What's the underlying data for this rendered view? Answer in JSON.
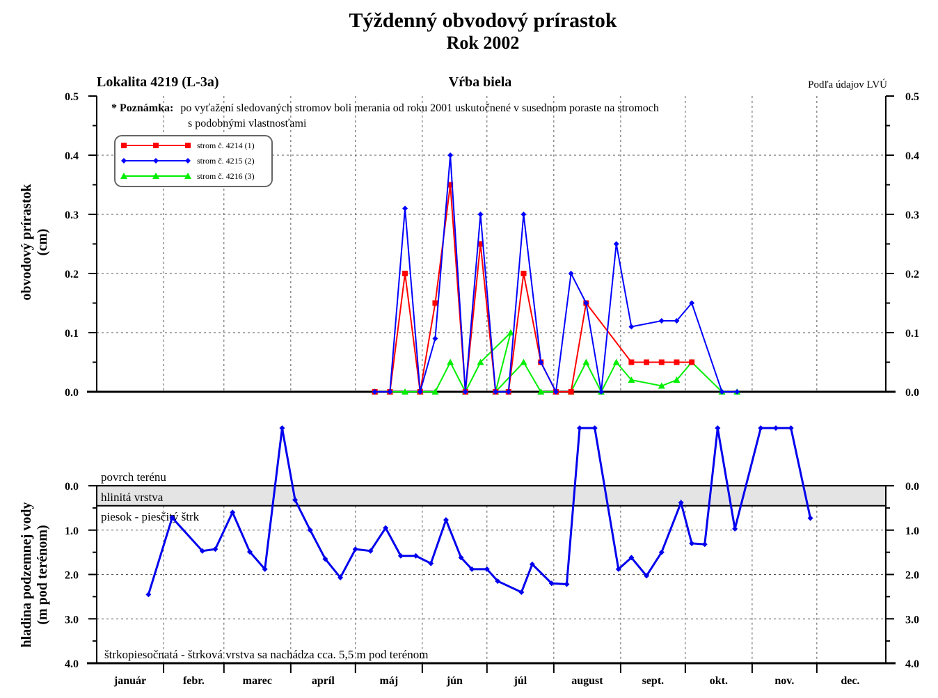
{
  "header": {
    "title": "Týždenný obvodový prírastok",
    "subtitle": "Rok 2002",
    "location": "Lokalita 4219 (L-3a)",
    "species": "Vŕba biela",
    "source": "Podľa údajov LVÚ"
  },
  "note": {
    "label": "* Poznámka:",
    "line1": "po vyťažení sledovaných stromov boli merania od roku 2001 uskutočnené v susednom poraste na stromoch",
    "line2": "s podobnými vlastnosťami"
  },
  "layers": {
    "surface": "povrch terénu",
    "clay": "hlinitá vrstva",
    "sand": "piesok - piesčitý štrk",
    "gravel": "štrkopiesočnatá - štrková vrstva sa nachádza cca. 5,5 m pod terénom"
  },
  "months": [
    "január",
    "febr.",
    "marec",
    "apríl",
    "máj",
    "jún",
    "júl",
    "august",
    "sept.",
    "okt.",
    "nov.",
    "dec."
  ],
  "colors": {
    "tree1": "#ff0000",
    "tree2": "#0000ff",
    "tree3": "#00ee00",
    "water": "#0000ee",
    "clayFill": "#e4e4e4"
  },
  "chart_data": [
    {
      "type": "line",
      "title": "Týždenný obvodový prírastok",
      "ylabel": [
        "obvodový prírastok",
        "(cm)"
      ],
      "ylim": [
        0,
        0.5
      ],
      "yticks": [
        "0.0",
        "0.1",
        "0.2",
        "0.3",
        "0.4",
        "0.5"
      ],
      "xlim_days": [
        0,
        366
      ],
      "legend_position": "top-left",
      "series": [
        {
          "name": "strom č. 4214 (1)",
          "marker": "square",
          "points": [
            [
              129,
              0
            ],
            [
              136,
              0
            ],
            [
              143,
              0.2
            ],
            [
              150,
              0
            ],
            [
              157,
              0.15
            ],
            [
              164,
              0.35
            ],
            [
              171,
              0
            ],
            [
              178,
              0.25
            ],
            [
              185,
              0
            ],
            [
              191,
              0
            ],
            [
              198,
              0.2
            ],
            [
              206,
              0.05
            ],
            [
              213,
              0
            ],
            [
              220,
              0
            ],
            [
              227,
              0.15
            ],
            [
              248,
              0.05
            ],
            [
              255,
              0.05
            ],
            [
              262,
              0.05
            ],
            [
              269,
              0.05
            ],
            [
              276,
              0.05
            ]
          ]
        },
        {
          "name": "strom č. 4215 (2)",
          "marker": "diamond",
          "points": [
            [
              129,
              0
            ],
            [
              136,
              0
            ],
            [
              143,
              0.31
            ],
            [
              150,
              0
            ],
            [
              157,
              0.09
            ],
            [
              164,
              0.4
            ],
            [
              171,
              0
            ],
            [
              178,
              0.3
            ],
            [
              185,
              0
            ],
            [
              191,
              0
            ],
            [
              198,
              0.3
            ],
            [
              206,
              0.05
            ],
            [
              213,
              0
            ],
            [
              220,
              0.2
            ],
            [
              227,
              0.15
            ],
            [
              234,
              0
            ],
            [
              241,
              0.25
            ],
            [
              248,
              0.11
            ],
            [
              262,
              0.12
            ],
            [
              269,
              0.12
            ],
            [
              276,
              0.15
            ],
            [
              290,
              0
            ],
            [
              297,
              0
            ]
          ]
        },
        {
          "name": "strom č. 4216 (3)",
          "marker": "triangle",
          "points": [
            [
              129,
              0
            ],
            [
              136,
              0
            ],
            [
              143,
              0
            ],
            [
              150,
              0
            ],
            [
              157,
              0
            ],
            [
              164,
              0.05
            ],
            [
              171,
              0
            ],
            [
              178,
              0.05
            ],
            [
              192,
              0.1
            ],
            [
              185,
              0
            ],
            [
              198,
              0.05
            ],
            [
              206,
              0
            ],
            [
              213,
              0
            ],
            [
              220,
              0
            ],
            [
              227,
              0.05
            ],
            [
              234,
              0
            ],
            [
              241,
              0.05
            ],
            [
              248,
              0.02
            ],
            [
              262,
              0.01
            ],
            [
              269,
              0.02
            ],
            [
              276,
              0.05
            ],
            [
              290,
              0
            ],
            [
              297,
              0
            ]
          ]
        }
      ]
    },
    {
      "type": "line",
      "ylabel": [
        "hladina podzemnej vody",
        "(m pod terénom)"
      ],
      "ylim": [
        4.0,
        -1.3
      ],
      "yticks": [
        "0.0",
        "1.0",
        "2.0",
        "3.0",
        "4.0"
      ],
      "series": [
        {
          "name": "",
          "marker": "diamond",
          "points": [
            [
              24,
              2.45
            ],
            [
              35,
              0.72
            ],
            [
              49,
              1.47
            ],
            [
              55,
              1.43
            ],
            [
              63,
              0.6
            ],
            [
              71,
              1.49
            ],
            [
              78,
              1.88
            ],
            [
              86,
              -1.3
            ],
            [
              92,
              0.32
            ],
            [
              99,
              1.0
            ],
            [
              106,
              1.65
            ],
            [
              113,
              2.07
            ],
            [
              120,
              1.43
            ],
            [
              127,
              1.47
            ],
            [
              134,
              0.95
            ],
            [
              141,
              1.58
            ],
            [
              148,
              1.58
            ],
            [
              155,
              1.75
            ],
            [
              162,
              0.77
            ],
            [
              169,
              1.62
            ],
            [
              174,
              1.88
            ],
            [
              181,
              1.88
            ],
            [
              186,
              2.15
            ],
            [
              197,
              2.4
            ],
            [
              202,
              1.77
            ],
            [
              211,
              2.2
            ],
            [
              218,
              2.22
            ],
            [
              224,
              -1.3
            ],
            [
              231,
              -1.3
            ],
            [
              242,
              1.88
            ],
            [
              248,
              1.62
            ],
            [
              255,
              2.03
            ],
            [
              262,
              1.5
            ],
            [
              271,
              0.38
            ],
            [
              276,
              1.3
            ],
            [
              282,
              1.32
            ],
            [
              288,
              -1.3
            ],
            [
              296,
              0.97
            ],
            [
              308,
              -1.3
            ],
            [
              315,
              -1.3
            ],
            [
              322,
              -1.3
            ],
            [
              331,
              0.73
            ]
          ]
        }
      ]
    }
  ]
}
